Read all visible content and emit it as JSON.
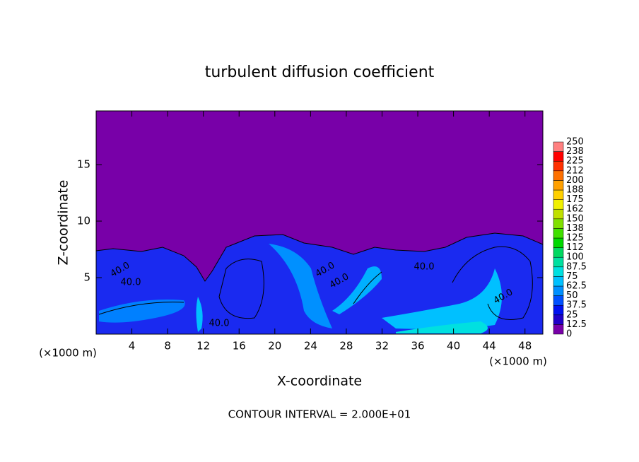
{
  "chart_data": {
    "type": "contour",
    "title": "turbulent diffusion coefficient",
    "x_label": "X-coordinate",
    "y_label": "Z-coordinate",
    "x_unit": "(×1000 m)",
    "y_unit": "(×1000 m)",
    "footer": "CONTOUR INTERVAL = 2.000E+01",
    "xlim": [
      0,
      50
    ],
    "xticks": [
      4,
      8,
      12,
      16,
      20,
      24,
      28,
      32,
      36,
      40,
      44,
      48
    ],
    "ylim": [
      0,
      19.75
    ],
    "yticks": [
      5,
      10,
      15
    ],
    "contour_labels": [
      "40.0",
      "40.0",
      "40.0",
      "40.0",
      "40.0",
      "40.0",
      "40.0"
    ],
    "colorbar": {
      "levels": [
        0,
        12.5,
        25,
        37.5,
        50,
        62.5,
        75,
        87.5,
        100,
        {
          "value": 112.5,
          "label": "112"
        },
        125,
        {
          "value": 137.5,
          "label": "138"
        },
        150,
        {
          "value": 162.5,
          "label": "162"
        },
        175,
        {
          "value": 187.5,
          "label": "188"
        },
        200,
        {
          "value": 212.5,
          "label": "212"
        },
        225,
        {
          "value": 237.5,
          "label": "238"
        },
        250
      ],
      "colors": [
        "#7800a8",
        "#2000c8",
        "#0010f0",
        "#0050ff",
        "#0090ff",
        "#00c0ff",
        "#00e0e0",
        "#00e0a0",
        "#00d860",
        "#00d800",
        "#40e000",
        "#80e000",
        "#c0e000",
        "#f0f000",
        "#ffd000",
        "#ffa000",
        "#ff7000",
        "#ff3000",
        "#ff0000",
        "#ff8080"
      ]
    }
  }
}
